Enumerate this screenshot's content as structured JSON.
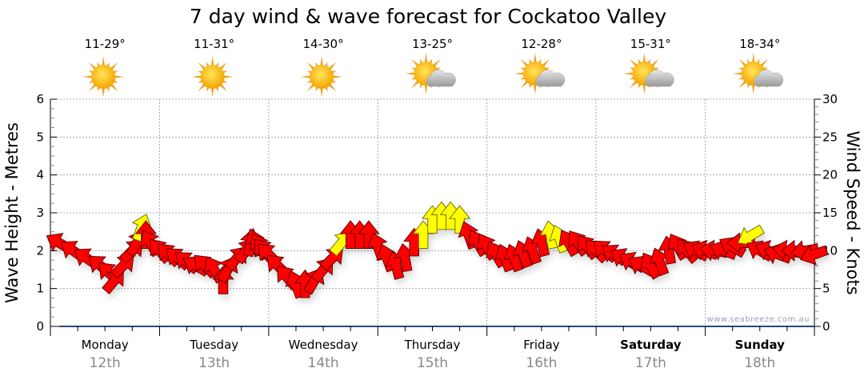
{
  "chart_data": {
    "type": "scatter",
    "title": "7 day wind & wave forecast for Cockatoo Valley",
    "ylabel_left": "Wave Height - Metres",
    "ylabel_right": "Wind Speed - Knots",
    "ylim_left": [
      0,
      6
    ],
    "ylim_right": [
      0,
      30
    ],
    "yticks_left": [
      "0",
      "1",
      "2",
      "3",
      "4",
      "5",
      "6"
    ],
    "yticks_right": [
      "0",
      "5",
      "10",
      "15",
      "20",
      "25",
      "30"
    ],
    "grid": true,
    "watermark": "www.seabreeze.com.au",
    "days": [
      {
        "day": "Monday",
        "date": "12th",
        "temp": "11-29°",
        "icon": "sun-icon",
        "bold": false
      },
      {
        "day": "Tuesday",
        "date": "13th",
        "temp": "11-31°",
        "icon": "sun-icon",
        "bold": false
      },
      {
        "day": "Wednesday",
        "date": "14th",
        "temp": "14-30°",
        "icon": "sun-icon",
        "bold": false
      },
      {
        "day": "Thursday",
        "date": "15th",
        "temp": "13-25°",
        "icon": "partly-cloudy-icon",
        "bold": false
      },
      {
        "day": "Friday",
        "date": "16th",
        "temp": "12-28°",
        "icon": "partly-cloudy-icon",
        "bold": false
      },
      {
        "day": "Saturday",
        "date": "17th",
        "temp": "15-31°",
        "icon": "partly-cloudy-icon",
        "bold": true
      },
      {
        "day": "Sunday",
        "date": "18th",
        "temp": "18-34°",
        "icon": "partly-cloudy-icon",
        "bold": true
      }
    ],
    "colors": {
      "strong": "#ffff00",
      "normal": "#ff0000",
      "wave": "#1f4e79"
    },
    "wave_height_m": {
      "hours": [
        2,
        168
      ],
      "values": [
        0,
        0
      ]
    },
    "wind": {
      "fields": [
        "hour",
        "knots",
        "arrow_direction_deg",
        "strong"
      ],
      "points": [
        [
          2,
          11,
          -60,
          0
        ],
        [
          5,
          10,
          -55,
          0
        ],
        [
          8,
          9,
          -55,
          0
        ],
        [
          11,
          8,
          -50,
          0
        ],
        [
          13,
          7,
          -45,
          0
        ],
        [
          14,
          6,
          40,
          0
        ],
        [
          16,
          8,
          45,
          0
        ],
        [
          18,
          10,
          45,
          0
        ],
        [
          19,
          11,
          30,
          0
        ],
        [
          20,
          13,
          20,
          1
        ],
        [
          21,
          12,
          0,
          0
        ],
        [
          22,
          11,
          -30,
          0
        ],
        [
          24,
          10,
          -40,
          0
        ],
        [
          26,
          9.5,
          -45,
          0
        ],
        [
          28,
          9,
          -50,
          0
        ],
        [
          30,
          8.5,
          -50,
          0
        ],
        [
          32,
          8,
          -60,
          0
        ],
        [
          34,
          8,
          -45,
          0
        ],
        [
          36,
          7.5,
          -30,
          0
        ],
        [
          38,
          6,
          0,
          0
        ],
        [
          39,
          7.5,
          30,
          0
        ],
        [
          41,
          9,
          40,
          0
        ],
        [
          43,
          10,
          35,
          0
        ],
        [
          44,
          11,
          10,
          0
        ],
        [
          45,
          11,
          -20,
          0
        ],
        [
          46,
          10.5,
          -30,
          0
        ],
        [
          47,
          10,
          -40,
          0
        ],
        [
          48,
          9.5,
          -45,
          0
        ],
        [
          50,
          8,
          -45,
          0
        ],
        [
          52,
          6.5,
          -40,
          0
        ],
        [
          54,
          5.5,
          -20,
          0
        ],
        [
          56,
          5.5,
          0,
          0
        ],
        [
          58,
          6,
          30,
          0
        ],
        [
          60,
          7.5,
          40,
          0
        ],
        [
          62,
          9,
          45,
          0
        ],
        [
          64,
          11,
          40,
          1
        ],
        [
          66,
          12,
          0,
          0
        ],
        [
          68,
          12,
          0,
          0
        ],
        [
          70,
          12,
          0,
          0
        ],
        [
          72,
          10.5,
          -20,
          0
        ],
        [
          74,
          9,
          -20,
          0
        ],
        [
          76,
          8,
          -15,
          0
        ],
        [
          78,
          9,
          -10,
          0
        ],
        [
          80,
          11,
          0,
          0
        ],
        [
          82,
          12,
          0,
          1
        ],
        [
          84,
          14,
          0,
          1
        ],
        [
          86,
          14.5,
          0,
          1
        ],
        [
          88,
          14.5,
          0,
          1
        ],
        [
          90,
          14,
          0,
          1
        ],
        [
          92,
          12,
          -20,
          0
        ],
        [
          94,
          11,
          -30,
          0
        ],
        [
          96,
          10.5,
          -30,
          0
        ],
        [
          98,
          9.5,
          -30,
          0
        ],
        [
          100,
          9,
          -20,
          0
        ],
        [
          102,
          9,
          -20,
          0
        ],
        [
          104,
          9.5,
          -20,
          0
        ],
        [
          106,
          10,
          -20,
          0
        ],
        [
          108,
          11,
          -15,
          0
        ],
        [
          110,
          12,
          -10,
          1
        ],
        [
          112,
          11.5,
          -20,
          1
        ],
        [
          114,
          11,
          -30,
          0
        ],
        [
          116,
          11,
          -35,
          0
        ],
        [
          118,
          10.5,
          -40,
          0
        ],
        [
          120,
          10,
          -45,
          0
        ],
        [
          122,
          10,
          -50,
          0
        ],
        [
          124,
          9.5,
          -55,
          0
        ],
        [
          126,
          9,
          -60,
          0
        ],
        [
          128,
          8.5,
          -60,
          0
        ],
        [
          130,
          8,
          -60,
          0
        ],
        [
          132,
          8,
          -30,
          0
        ],
        [
          134,
          8.5,
          -20,
          0
        ],
        [
          136,
          10,
          -10,
          0
        ],
        [
          138,
          10.5,
          -30,
          0
        ],
        [
          140,
          10,
          -40,
          0
        ],
        [
          142,
          10,
          -60,
          0
        ],
        [
          144,
          10,
          -70,
          0
        ],
        [
          146,
          10,
          -80,
          0
        ],
        [
          148,
          10,
          -70,
          0
        ],
        [
          150,
          10.5,
          -60,
          0
        ],
        [
          152,
          11,
          -90,
          0
        ],
        [
          154,
          12,
          -120,
          1
        ],
        [
          156,
          10,
          -60,
          0
        ],
        [
          158,
          10,
          -70,
          0
        ],
        [
          160,
          9.5,
          -70,
          0
        ],
        [
          162,
          10,
          -80,
          0
        ],
        [
          164,
          10,
          -90,
          0
        ],
        [
          166,
          10,
          -100,
          0
        ],
        [
          168,
          9.5,
          -110,
          0
        ]
      ]
    }
  }
}
